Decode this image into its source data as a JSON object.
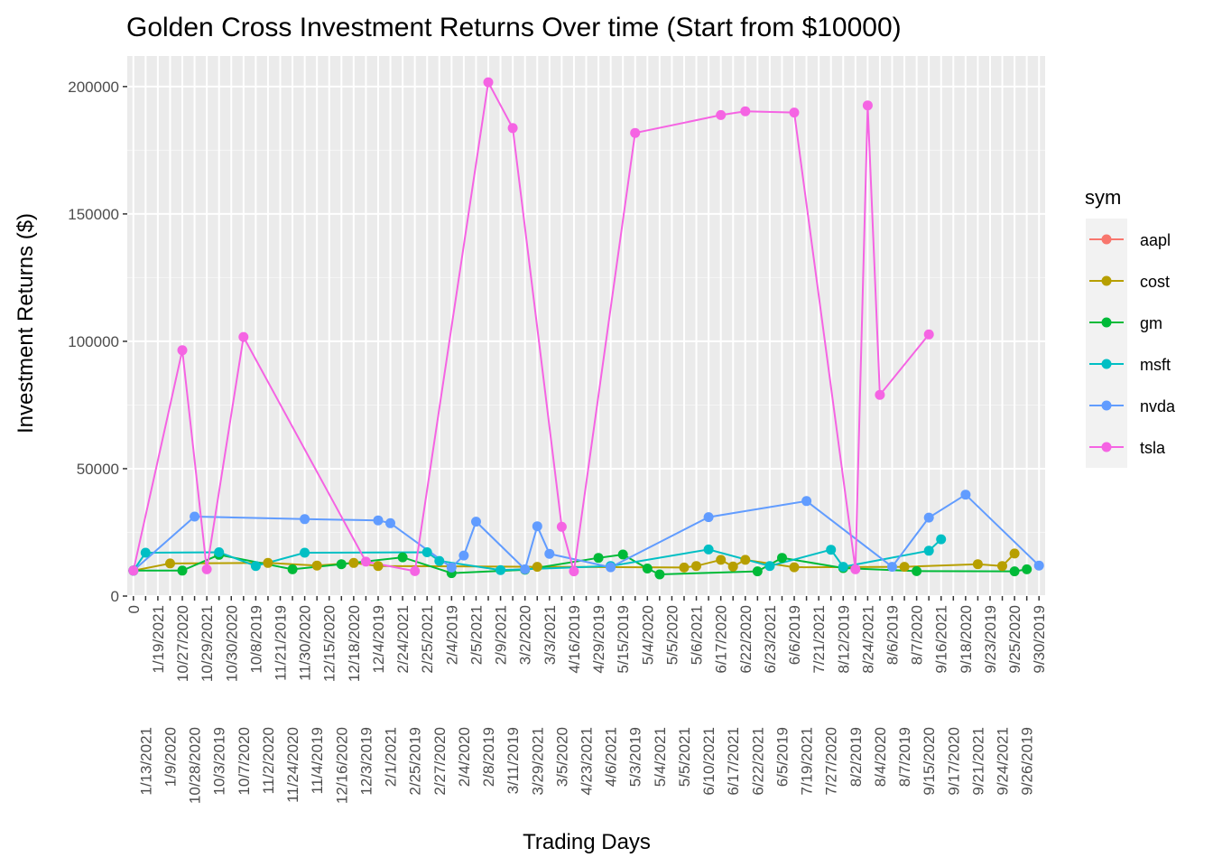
{
  "chart_data": {
    "type": "line",
    "title": "Golden Cross Investment Returns Over time (Start from $10000)",
    "xlabel": "Trading Days",
    "ylabel": "Investment Returns ($)",
    "ylim": [
      0,
      212000
    ],
    "yticks": [
      0,
      50000,
      100000,
      150000,
      200000
    ],
    "grid": true,
    "legend_title": "sym",
    "legend_position": "right",
    "categories": [
      "0",
      "1/13/2021",
      "1/19/2021",
      "1/9/2020",
      "10/27/2020",
      "10/28/2020",
      "10/29/2021",
      "10/3/2019",
      "10/30/2020",
      "10/7/2020",
      "10/8/2019",
      "11/2/2020",
      "11/21/2019",
      "11/24/2020",
      "11/30/2020",
      "11/4/2019",
      "12/15/2020",
      "12/16/2020",
      "12/18/2020",
      "12/3/2019",
      "12/4/2019",
      "2/1/2021",
      "2/24/2021",
      "2/25/2019",
      "2/25/2021",
      "2/27/2020",
      "2/4/2019",
      "2/4/2020",
      "2/5/2021",
      "2/8/2019",
      "2/9/2021",
      "3/11/2019",
      "3/2/2020",
      "3/29/2021",
      "3/3/2021",
      "3/5/2020",
      "4/16/2019",
      "4/23/2021",
      "4/29/2019",
      "4/6/2021",
      "5/15/2019",
      "5/3/2019",
      "5/4/2020",
      "5/4/2021",
      "5/5/2020",
      "5/5/2021",
      "5/6/2021",
      "6/10/2021",
      "6/17/2020",
      "6/17/2021",
      "6/22/2020",
      "6/22/2021",
      "6/23/2021",
      "6/5/2019",
      "6/6/2019",
      "7/19/2021",
      "7/21/2021",
      "7/27/2020",
      "8/12/2019",
      "8/2/2019",
      "8/24/2021",
      "8/4/2020",
      "8/6/2019",
      "8/7/2019",
      "8/7/2020",
      "9/15/2020",
      "9/16/2021",
      "9/17/2020",
      "9/18/2020",
      "9/21/2021",
      "9/23/2019",
      "9/24/2021",
      "9/25/2020",
      "9/26/2019",
      "9/30/2019"
    ],
    "series": [
      {
        "name": "aapl",
        "color": "#F8766D",
        "points": []
      },
      {
        "name": "cost",
        "color": "#B79F00",
        "points": [
          {
            "x": "0",
            "y": 10000
          },
          {
            "x": "1/9/2020",
            "y": 12800
          },
          {
            "x": "11/2/2020",
            "y": 13000
          },
          {
            "x": "11/4/2019",
            "y": 12000
          },
          {
            "x": "12/18/2020",
            "y": 13000
          },
          {
            "x": "12/4/2019",
            "y": 11800
          },
          {
            "x": "3/29/2021",
            "y": 11500
          },
          {
            "x": "5/5/2021",
            "y": 11200
          },
          {
            "x": "5/6/2021",
            "y": 11800
          },
          {
            "x": "6/17/2020",
            "y": 14200
          },
          {
            "x": "6/17/2021",
            "y": 11600
          },
          {
            "x": "6/22/2020",
            "y": 14200
          },
          {
            "x": "6/6/2019",
            "y": 11300
          },
          {
            "x": "8/7/2019",
            "y": 11500
          },
          {
            "x": "9/21/2021",
            "y": 12500
          },
          {
            "x": "9/24/2021",
            "y": 11800
          },
          {
            "x": "9/25/2020",
            "y": 16700
          }
        ]
      },
      {
        "name": "gm",
        "color": "#00BA38",
        "points": [
          {
            "x": "0",
            "y": 10000
          },
          {
            "x": "10/27/2020",
            "y": 10000
          },
          {
            "x": "10/3/2019",
            "y": 16200
          },
          {
            "x": "11/24/2020",
            "y": 10500
          },
          {
            "x": "12/16/2020",
            "y": 12500
          },
          {
            "x": "2/24/2021",
            "y": 15200
          },
          {
            "x": "2/4/2019",
            "y": 9000
          },
          {
            "x": "3/2/2020",
            "y": 10300
          },
          {
            "x": "4/29/2019",
            "y": 15000
          },
          {
            "x": "5/15/2019",
            "y": 16300
          },
          {
            "x": "5/4/2020",
            "y": 10800
          },
          {
            "x": "5/4/2021",
            "y": 8500
          },
          {
            "x": "6/22/2021",
            "y": 9700
          },
          {
            "x": "6/5/2019",
            "y": 15000
          },
          {
            "x": "8/12/2019",
            "y": 11000
          },
          {
            "x": "8/7/2020",
            "y": 9800
          },
          {
            "x": "9/25/2020",
            "y": 9700
          },
          {
            "x": "9/26/2019",
            "y": 10500
          }
        ]
      },
      {
        "name": "msft",
        "color": "#00BFC4",
        "points": [
          {
            "x": "0",
            "y": 10000
          },
          {
            "x": "1/13/2021",
            "y": 17000
          },
          {
            "x": "10/3/2019",
            "y": 17200
          },
          {
            "x": "10/8/2019",
            "y": 11800
          },
          {
            "x": "11/30/2020",
            "y": 17000
          },
          {
            "x": "2/25/2021",
            "y": 17200
          },
          {
            "x": "2/27/2020",
            "y": 13800
          },
          {
            "x": "2/9/2021",
            "y": 10200
          },
          {
            "x": "4/6/2021",
            "y": 11800
          },
          {
            "x": "6/10/2021",
            "y": 18300
          },
          {
            "x": "6/23/2021",
            "y": 11800
          },
          {
            "x": "7/27/2020",
            "y": 18200
          },
          {
            "x": "8/12/2019",
            "y": 11500
          },
          {
            "x": "9/15/2020",
            "y": 17800
          },
          {
            "x": "9/16/2021",
            "y": 22300
          }
        ]
      },
      {
        "name": "nvda",
        "color": "#619CFF",
        "points": [
          {
            "x": "0",
            "y": 10000
          },
          {
            "x": "10/28/2020",
            "y": 31200
          },
          {
            "x": "11/30/2020",
            "y": 30200
          },
          {
            "x": "12/4/2019",
            "y": 29700
          },
          {
            "x": "2/1/2021",
            "y": 28600
          },
          {
            "x": "2/4/2019",
            "y": 11200
          },
          {
            "x": "2/4/2020",
            "y": 15900
          },
          {
            "x": "2/5/2021",
            "y": 29200
          },
          {
            "x": "3/2/2020",
            "y": 10500
          },
          {
            "x": "3/29/2021",
            "y": 27400
          },
          {
            "x": "3/3/2021",
            "y": 16600
          },
          {
            "x": "4/6/2021",
            "y": 11300
          },
          {
            "x": "6/10/2021",
            "y": 31000
          },
          {
            "x": "7/19/2021",
            "y": 37300
          },
          {
            "x": "8/6/2019",
            "y": 11500
          },
          {
            "x": "9/15/2020",
            "y": 30800
          },
          {
            "x": "9/18/2020",
            "y": 39800
          },
          {
            "x": "9/30/2019",
            "y": 12000
          }
        ]
      },
      {
        "name": "tsla",
        "color": "#F564E3",
        "points": [
          {
            "x": "0",
            "y": 10000
          },
          {
            "x": "10/27/2020",
            "y": 96500
          },
          {
            "x": "10/29/2021",
            "y": 10500
          },
          {
            "x": "10/7/2020",
            "y": 101700
          },
          {
            "x": "12/3/2019",
            "y": 13500
          },
          {
            "x": "2/25/2019",
            "y": 9800
          },
          {
            "x": "2/8/2019",
            "y": 201700
          },
          {
            "x": "3/11/2019",
            "y": 183700
          },
          {
            "x": "3/5/2020",
            "y": 27200
          },
          {
            "x": "4/16/2019",
            "y": 9700
          },
          {
            "x": "5/3/2019",
            "y": 181800
          },
          {
            "x": "6/17/2020",
            "y": 188800
          },
          {
            "x": "6/22/2020",
            "y": 190300
          },
          {
            "x": "6/6/2019",
            "y": 189800
          },
          {
            "x": "8/2/2019",
            "y": 10500
          },
          {
            "x": "8/24/2021",
            "y": 192600
          },
          {
            "x": "8/4/2020",
            "y": 79000
          },
          {
            "x": "9/15/2020",
            "y": 102700
          }
        ]
      }
    ]
  }
}
